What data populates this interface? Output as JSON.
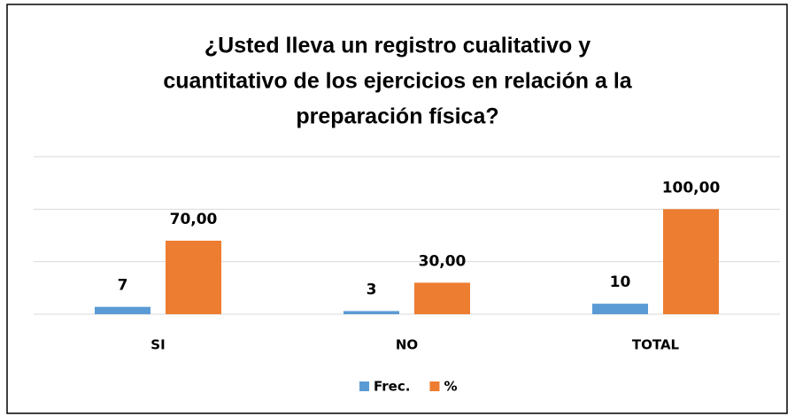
{
  "chart_data": {
    "type": "bar",
    "title": [
      "¿Usted lleva un registro cualitativo y",
      "cuantitativo de los ejercicios en relación a la",
      "preparación física?"
    ],
    "categories": [
      "SI",
      "NO",
      "TOTAL"
    ],
    "series": [
      {
        "name": "Frec.",
        "color": "#5b9bd5",
        "values": [
          7,
          3,
          10
        ]
      },
      {
        "name": "%",
        "color": "#ed7d31",
        "values": [
          70,
          30,
          100
        ],
        "value_labels": [
          "70,00",
          "30,00",
          "100,00"
        ]
      }
    ],
    "ylim": [
      0,
      150
    ],
    "yticks": [
      0,
      50,
      100,
      150
    ],
    "grid": true,
    "legend": "bottom"
  }
}
